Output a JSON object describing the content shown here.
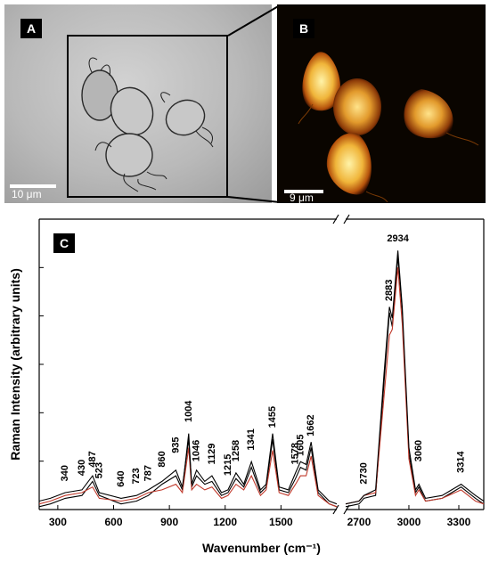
{
  "panel_a": {
    "label": "A",
    "scale_bar": "10 μm"
  },
  "panel_b": {
    "label": "B",
    "scale_bar": "9 μm"
  },
  "panel_c": {
    "label": "C"
  },
  "chart_data": {
    "type": "line",
    "title": "",
    "xlabel": "Wavenumber (cm⁻¹)",
    "ylabel": "Raman Intensity (arbitrary units)",
    "axis_break": true,
    "xlim_left": [
      200,
      1800
    ],
    "xlim_right": [
      2620,
      3450
    ],
    "left_ticks": [
      "300",
      "600",
      "900",
      "1200",
      "1500"
    ],
    "right_ticks": [
      "2700",
      "3000",
      "3300"
    ],
    "grid": false,
    "peak_labels": [
      {
        "text": "340",
        "x": 340,
        "y": 0.1
      },
      {
        "text": "430",
        "x": 430,
        "y": 0.12
      },
      {
        "text": "487",
        "x": 487,
        "y": 0.15
      },
      {
        "text": "523",
        "x": 523,
        "y": 0.11
      },
      {
        "text": "640",
        "x": 640,
        "y": 0.08
      },
      {
        "text": "723",
        "x": 723,
        "y": 0.09
      },
      {
        "text": "787",
        "x": 787,
        "y": 0.1
      },
      {
        "text": "860",
        "x": 860,
        "y": 0.15
      },
      {
        "text": "935",
        "x": 935,
        "y": 0.2
      },
      {
        "text": "1004",
        "x": 1004,
        "y": 0.31
      },
      {
        "text": "1046",
        "x": 1046,
        "y": 0.17
      },
      {
        "text": "1129",
        "x": 1129,
        "y": 0.16
      },
      {
        "text": "1215",
        "x": 1215,
        "y": 0.12
      },
      {
        "text": "1258",
        "x": 1258,
        "y": 0.17
      },
      {
        "text": "1341",
        "x": 1341,
        "y": 0.21
      },
      {
        "text": "1455",
        "x": 1455,
        "y": 0.29
      },
      {
        "text": "1578",
        "x": 1578,
        "y": 0.16
      },
      {
        "text": "1605",
        "x": 1605,
        "y": 0.19
      },
      {
        "text": "1662",
        "x": 1662,
        "y": 0.26
      },
      {
        "text": "2730",
        "x": 2730,
        "y": 0.09
      },
      {
        "text": "2883",
        "x": 2883,
        "y": 0.74
      },
      {
        "text": "2934",
        "x": 2934,
        "y": 0.94
      },
      {
        "text": "3060",
        "x": 3060,
        "y": 0.17
      },
      {
        "text": "3314",
        "x": 3314,
        "y": 0.13
      }
    ],
    "series_colors": [
      "#000000",
      "#c0392b"
    ],
    "series": [
      {
        "values": [
          [
            200,
            0.01
          ],
          [
            260,
            0.02
          ],
          [
            340,
            0.04
          ],
          [
            430,
            0.05
          ],
          [
            487,
            0.1
          ],
          [
            523,
            0.05
          ],
          [
            640,
            0.02
          ],
          [
            723,
            0.03
          ],
          [
            787,
            0.05
          ],
          [
            860,
            0.09
          ],
          [
            935,
            0.12
          ],
          [
            970,
            0.07
          ],
          [
            1004,
            0.27
          ],
          [
            1020,
            0.08
          ],
          [
            1046,
            0.12
          ],
          [
            1090,
            0.09
          ],
          [
            1129,
            0.1
          ],
          [
            1180,
            0.05
          ],
          [
            1215,
            0.06
          ],
          [
            1258,
            0.11
          ],
          [
            1300,
            0.08
          ],
          [
            1341,
            0.15
          ],
          [
            1390,
            0.06
          ],
          [
            1420,
            0.08
          ],
          [
            1455,
            0.25
          ],
          [
            1490,
            0.07
          ],
          [
            1540,
            0.06
          ],
          [
            1578,
            0.11
          ],
          [
            1605,
            0.15
          ],
          [
            1635,
            0.14
          ],
          [
            1662,
            0.22
          ],
          [
            1700,
            0.06
          ],
          [
            1760,
            0.02
          ],
          [
            1800,
            0.01
          ],
          [
            2620,
            0.01
          ],
          [
            2700,
            0.02
          ],
          [
            2730,
            0.04
          ],
          [
            2800,
            0.05
          ],
          [
            2850,
            0.45
          ],
          [
            2883,
            0.7
          ],
          [
            2900,
            0.65
          ],
          [
            2934,
            0.9
          ],
          [
            2960,
            0.7
          ],
          [
            3000,
            0.2
          ],
          [
            3040,
            0.06
          ],
          [
            3060,
            0.08
          ],
          [
            3100,
            0.03
          ],
          [
            3200,
            0.04
          ],
          [
            3314,
            0.08
          ],
          [
            3400,
            0.04
          ],
          [
            3450,
            0.02
          ]
        ]
      },
      {
        "values": [
          [
            200,
            0.02
          ],
          [
            260,
            0.03
          ],
          [
            340,
            0.05
          ],
          [
            430,
            0.06
          ],
          [
            487,
            0.08
          ],
          [
            523,
            0.04
          ],
          [
            640,
            0.03
          ],
          [
            723,
            0.04
          ],
          [
            787,
            0.06
          ],
          [
            860,
            0.07
          ],
          [
            935,
            0.09
          ],
          [
            970,
            0.06
          ],
          [
            1004,
            0.22
          ],
          [
            1020,
            0.07
          ],
          [
            1046,
            0.09
          ],
          [
            1090,
            0.07
          ],
          [
            1129,
            0.08
          ],
          [
            1180,
            0.04
          ],
          [
            1215,
            0.05
          ],
          [
            1258,
            0.09
          ],
          [
            1300,
            0.07
          ],
          [
            1341,
            0.12
          ],
          [
            1390,
            0.05
          ],
          [
            1420,
            0.07
          ],
          [
            1455,
            0.21
          ],
          [
            1490,
            0.06
          ],
          [
            1540,
            0.05
          ],
          [
            1578,
            0.09
          ],
          [
            1605,
            0.12
          ],
          [
            1635,
            0.12
          ],
          [
            1662,
            0.19
          ],
          [
            1700,
            0.05
          ],
          [
            1760,
            0.02
          ],
          [
            1800,
            0.01
          ],
          [
            2620,
            0.02
          ],
          [
            2700,
            0.03
          ],
          [
            2730,
            0.05
          ],
          [
            2800,
            0.06
          ],
          [
            2850,
            0.4
          ],
          [
            2883,
            0.62
          ],
          [
            2900,
            0.64
          ],
          [
            2934,
            0.86
          ],
          [
            2960,
            0.66
          ],
          [
            3000,
            0.18
          ],
          [
            3040,
            0.05
          ],
          [
            3060,
            0.07
          ],
          [
            3100,
            0.03
          ],
          [
            3200,
            0.04
          ],
          [
            3314,
            0.07
          ],
          [
            3400,
            0.03
          ],
          [
            3450,
            0.02
          ]
        ]
      },
      {
        "values": [
          [
            200,
            0.03
          ],
          [
            260,
            0.04
          ],
          [
            340,
            0.06
          ],
          [
            430,
            0.07
          ],
          [
            487,
            0.12
          ],
          [
            523,
            0.06
          ],
          [
            640,
            0.04
          ],
          [
            723,
            0.05
          ],
          [
            787,
            0.07
          ],
          [
            860,
            0.1
          ],
          [
            935,
            0.14
          ],
          [
            970,
            0.08
          ],
          [
            1004,
            0.25
          ],
          [
            1020,
            0.09
          ],
          [
            1046,
            0.14
          ],
          [
            1090,
            0.1
          ],
          [
            1129,
            0.12
          ],
          [
            1180,
            0.06
          ],
          [
            1215,
            0.07
          ],
          [
            1258,
            0.13
          ],
          [
            1300,
            0.09
          ],
          [
            1341,
            0.17
          ],
          [
            1390,
            0.07
          ],
          [
            1420,
            0.09
          ],
          [
            1455,
            0.27
          ],
          [
            1490,
            0.08
          ],
          [
            1540,
            0.07
          ],
          [
            1578,
            0.13
          ],
          [
            1605,
            0.17
          ],
          [
            1635,
            0.16
          ],
          [
            1662,
            0.24
          ],
          [
            1700,
            0.07
          ],
          [
            1760,
            0.03
          ],
          [
            1800,
            0.02
          ],
          [
            2620,
            0.02
          ],
          [
            2700,
            0.03
          ],
          [
            2730,
            0.05
          ],
          [
            2800,
            0.07
          ],
          [
            2850,
            0.48
          ],
          [
            2883,
            0.72
          ],
          [
            2900,
            0.68
          ],
          [
            2934,
            0.92
          ],
          [
            2960,
            0.72
          ],
          [
            3000,
            0.22
          ],
          [
            3040,
            0.07
          ],
          [
            3060,
            0.09
          ],
          [
            3100,
            0.04
          ],
          [
            3200,
            0.05
          ],
          [
            3314,
            0.09
          ],
          [
            3400,
            0.05
          ],
          [
            3450,
            0.03
          ]
        ]
      }
    ]
  }
}
